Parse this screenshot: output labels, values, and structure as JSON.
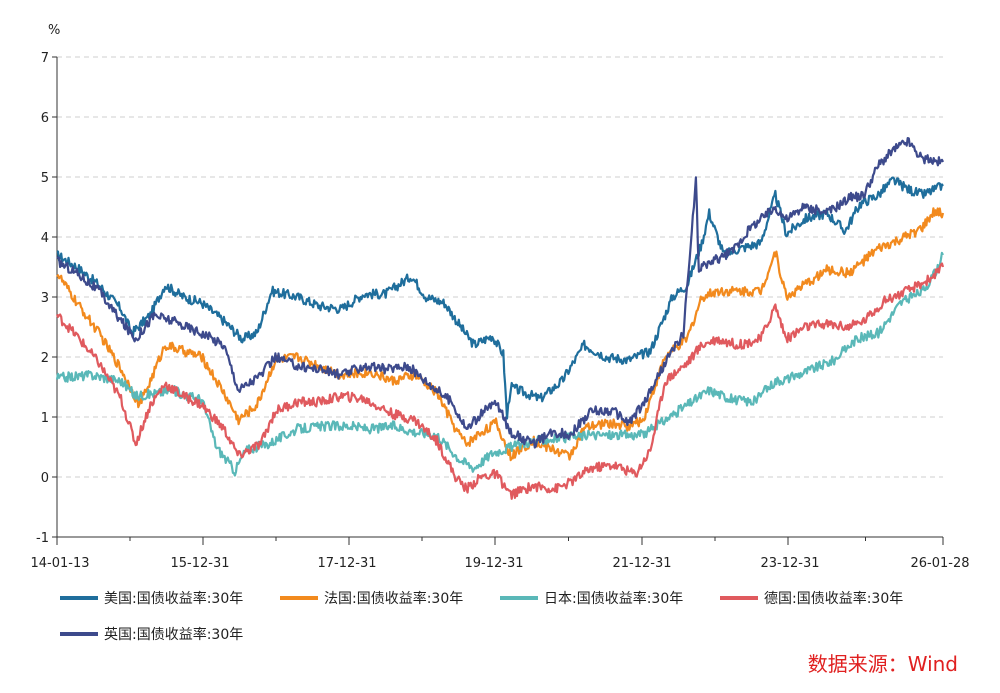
{
  "chart_data": {
    "type": "line",
    "y_unit": "%",
    "ylim": [
      -1,
      7
    ],
    "y_ticks": [
      "-1",
      "0",
      "1",
      "2",
      "3",
      "4",
      "5",
      "6",
      "7"
    ],
    "x_ticks": [
      "14-01-13",
      "15-12-31",
      "17-12-31",
      "19-12-31",
      "21-12-31",
      "23-12-31",
      "26-01-28"
    ],
    "x_range": [
      2014.03,
      2026.08
    ],
    "grid": true,
    "series": [
      {
        "name": "美国:国债收益率:30年",
        "color": "#1f6e9c",
        "x": [
          2014.03,
          2014.3,
          2014.6,
          2014.9,
          2015.05,
          2015.3,
          2015.5,
          2015.75,
          2016.0,
          2016.3,
          2016.55,
          2016.75,
          2016.95,
          2017.3,
          2017.6,
          2017.9,
          2018.2,
          2018.5,
          2018.85,
          2019.05,
          2019.3,
          2019.55,
          2019.7,
          2019.95,
          2020.1,
          2020.15,
          2020.2,
          2020.4,
          2020.6,
          2020.9,
          2021.2,
          2021.5,
          2021.8,
          2022.1,
          2022.4,
          2022.6,
          2022.8,
          2022.9,
          2023.1,
          2023.3,
          2023.6,
          2023.8,
          2023.95,
          2024.2,
          2024.5,
          2024.75,
          2024.95,
          2025.2,
          2025.4,
          2025.6,
          2025.8,
          2026.08
        ],
        "y": [
          3.7,
          3.5,
          3.2,
          2.8,
          2.4,
          2.7,
          3.2,
          3.0,
          2.9,
          2.6,
          2.3,
          2.4,
          3.1,
          3.0,
          2.85,
          2.8,
          3.05,
          3.05,
          3.35,
          3.0,
          2.9,
          2.45,
          2.2,
          2.35,
          2.05,
          1.0,
          1.5,
          1.4,
          1.3,
          1.6,
          2.2,
          2.0,
          1.95,
          2.1,
          3.0,
          3.2,
          3.9,
          4.4,
          3.7,
          3.8,
          3.9,
          4.7,
          4.05,
          4.3,
          4.4,
          4.1,
          4.55,
          4.7,
          4.95,
          4.8,
          4.7,
          4.85
        ]
      },
      {
        "name": "法国:国债收益率:30年",
        "color": "#f28a1e",
        "x": [
          2014.03,
          2014.3,
          2014.6,
          2014.9,
          2015.15,
          2015.3,
          2015.5,
          2015.75,
          2016.0,
          2016.3,
          2016.5,
          2016.75,
          2017.0,
          2017.3,
          2017.6,
          2017.9,
          2018.3,
          2018.6,
          2018.9,
          2019.2,
          2019.45,
          2019.6,
          2019.8,
          2020.0,
          2020.2,
          2020.5,
          2020.8,
          2021.0,
          2021.2,
          2021.5,
          2021.8,
          2022.0,
          2022.3,
          2022.6,
          2022.8,
          2023.0,
          2023.3,
          2023.6,
          2023.8,
          2023.95,
          2024.2,
          2024.5,
          2024.8,
          2025.0,
          2025.2,
          2025.5,
          2025.8,
          2025.95,
          2026.08
        ],
        "y": [
          3.4,
          2.9,
          2.4,
          1.8,
          1.2,
          1.6,
          2.2,
          2.1,
          2.0,
          1.4,
          0.95,
          1.2,
          1.95,
          2.0,
          1.85,
          1.7,
          1.75,
          1.6,
          1.7,
          1.4,
          0.8,
          0.55,
          0.75,
          0.9,
          0.35,
          0.6,
          0.45,
          0.35,
          0.8,
          0.9,
          0.85,
          0.95,
          2.0,
          2.3,
          3.0,
          3.1,
          3.1,
          3.1,
          3.75,
          3.0,
          3.2,
          3.45,
          3.4,
          3.6,
          3.8,
          3.95,
          4.15,
          4.4,
          4.4
        ]
      },
      {
        "name": "日本:国债收益率:30年",
        "color": "#5ab8b8",
        "x": [
          2014.03,
          2014.5,
          2014.9,
          2015.1,
          2015.4,
          2015.6,
          2015.8,
          2016.0,
          2016.2,
          2016.45,
          2016.6,
          2016.9,
          2017.3,
          2017.7,
          2018.0,
          2018.3,
          2018.6,
          2018.9,
          2019.2,
          2019.5,
          2019.7,
          2019.95,
          2020.2,
          2020.5,
          2020.9,
          2021.3,
          2021.7,
          2022.0,
          2022.3,
          2022.6,
          2022.9,
          2023.2,
          2023.5,
          2023.8,
          2024.0,
          2024.3,
          2024.6,
          2024.9,
          2025.2,
          2025.5,
          2025.8,
          2025.95,
          2026.08
        ],
        "y": [
          1.65,
          1.7,
          1.6,
          1.35,
          1.4,
          1.45,
          1.35,
          1.3,
          0.5,
          0.1,
          0.45,
          0.55,
          0.8,
          0.85,
          0.85,
          0.8,
          0.85,
          0.75,
          0.7,
          0.3,
          0.15,
          0.4,
          0.5,
          0.6,
          0.65,
          0.7,
          0.7,
          0.7,
          0.95,
          1.2,
          1.45,
          1.3,
          1.25,
          1.6,
          1.65,
          1.8,
          1.95,
          2.3,
          2.4,
          2.9,
          3.1,
          3.35,
          3.7
        ]
      },
      {
        "name": "德国:国债收益率:30年",
        "color": "#e05a5e",
        "x": [
          2014.03,
          2014.3,
          2014.6,
          2014.9,
          2015.1,
          2015.3,
          2015.5,
          2015.75,
          2016.0,
          2016.3,
          2016.5,
          2016.8,
          2017.0,
          2017.3,
          2017.6,
          2017.9,
          2018.2,
          2018.6,
          2018.9,
          2019.2,
          2019.45,
          2019.6,
          2019.8,
          2020.0,
          2020.2,
          2020.5,
          2020.8,
          2021.0,
          2021.3,
          2021.6,
          2021.9,
          2022.1,
          2022.3,
          2022.6,
          2022.8,
          2023.0,
          2023.3,
          2023.6,
          2023.8,
          2023.95,
          2024.2,
          2024.5,
          2024.8,
          2025.0,
          2025.3,
          2025.6,
          2025.9,
          2026.08
        ],
        "y": [
          2.7,
          2.35,
          1.9,
          1.3,
          0.55,
          1.2,
          1.55,
          1.35,
          1.2,
          0.8,
          0.35,
          0.55,
          1.1,
          1.25,
          1.25,
          1.35,
          1.3,
          1.05,
          0.95,
          0.6,
          0.0,
          -0.2,
          0.0,
          0.05,
          -0.3,
          -0.15,
          -0.2,
          -0.1,
          0.15,
          0.2,
          0.05,
          0.45,
          1.6,
          1.9,
          2.2,
          2.3,
          2.2,
          2.3,
          2.85,
          2.3,
          2.5,
          2.55,
          2.5,
          2.6,
          2.95,
          3.1,
          3.3,
          3.5
        ]
      },
      {
        "name": "英国:国债收益率:30年",
        "color": "#3d4a8c",
        "x": [
          2014.03,
          2014.3,
          2014.6,
          2014.9,
          2015.1,
          2015.35,
          2015.6,
          2015.8,
          2016.0,
          2016.3,
          2016.5,
          2016.8,
          2017.0,
          2017.3,
          2017.6,
          2017.9,
          2018.2,
          2018.5,
          2018.8,
          2019.1,
          2019.4,
          2019.6,
          2019.8,
          2020.0,
          2020.2,
          2020.5,
          2020.8,
          2021.0,
          2021.3,
          2021.6,
          2021.8,
          2022.0,
          2022.3,
          2022.55,
          2022.72,
          2022.76,
          2022.8,
          2022.95,
          2023.2,
          2023.5,
          2023.8,
          2023.95,
          2024.2,
          2024.5,
          2024.8,
          2025.0,
          2025.2,
          2025.4,
          2025.6,
          2025.8,
          2026.08
        ],
        "y": [
          3.6,
          3.4,
          3.1,
          2.6,
          2.3,
          2.7,
          2.6,
          2.5,
          2.4,
          2.2,
          1.45,
          1.7,
          2.0,
          1.85,
          1.8,
          1.7,
          1.85,
          1.8,
          1.85,
          1.55,
          1.25,
          0.8,
          1.05,
          1.25,
          0.75,
          0.55,
          0.75,
          0.7,
          1.1,
          1.1,
          0.9,
          1.2,
          1.9,
          2.4,
          4.95,
          3.4,
          3.5,
          3.6,
          3.75,
          4.2,
          4.5,
          4.3,
          4.5,
          4.4,
          4.65,
          4.7,
          5.2,
          5.45,
          5.6,
          5.3,
          5.25
        ]
      }
    ]
  },
  "legend_rows": [
    [
      "美国:国债收益率:30年",
      "法国:国债收益率:30年",
      "日本:国债收益率:30年",
      "德国:国债收益率:30年"
    ],
    [
      "英国:国债收益率:30年"
    ]
  ],
  "source": "数据来源：Wind"
}
